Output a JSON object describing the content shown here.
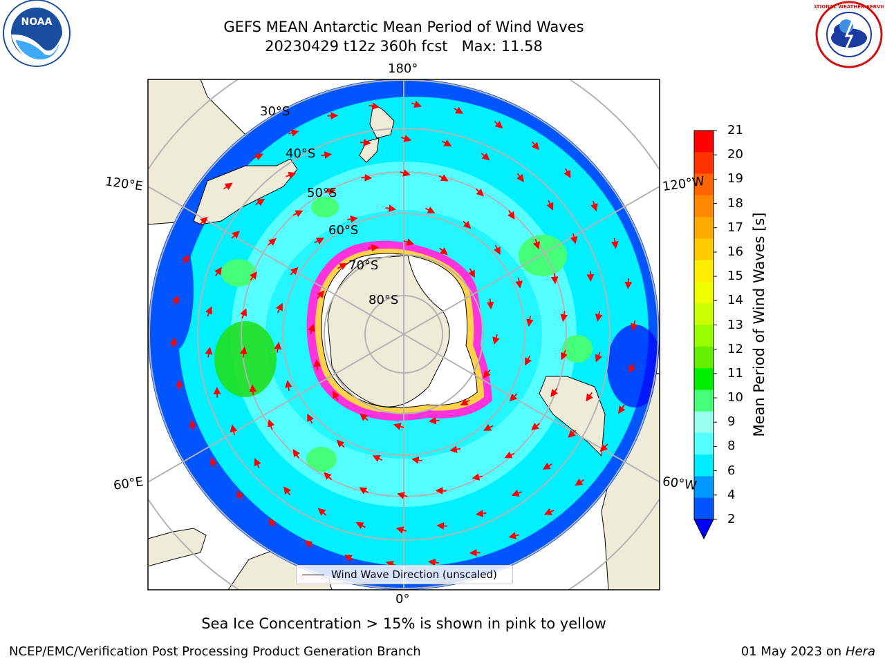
{
  "title": {
    "line1": "GEFS MEAN Antarctic Mean Period of Wind Waves",
    "line2": "20230429 t12z 360h fcst   Max: 11.58"
  },
  "map": {
    "projection": "south-polar-stereographic",
    "meridian_labels": {
      "top": "180°",
      "bottom": "0°",
      "upper_left": "120°E",
      "upper_right": "120°W",
      "lower_left": "60°E",
      "lower_right": "60°W"
    },
    "latitude_labels": [
      "30°S",
      "40°S",
      "50°S",
      "60°S",
      "70°S",
      "80°S"
    ],
    "colors": {
      "land": "#eeecd9",
      "ocean_deep_blue": "#0055ff",
      "ocean_cyan": "#00f0ff",
      "ocean_light": "#a8fcf6",
      "ocean_green": "#20e020",
      "sea_ice_pink": "#ff33dd",
      "sea_ice_yellow": "#ffd24a",
      "arrow": "#ff0000",
      "grid": "#b3b3b3"
    }
  },
  "legend": {
    "label": "Wind Wave Direction (unscaled)"
  },
  "colorbar": {
    "title": "Mean Period of Wind Waves [s]",
    "ticks": [
      "21",
      "20",
      "19",
      "18",
      "17",
      "16",
      "15",
      "14",
      "13",
      "12",
      "11",
      "10",
      "9",
      "8",
      "6",
      "4",
      "2"
    ],
    "colors_top_to_bottom": [
      "#ff0000",
      "#ff3300",
      "#ff6600",
      "#ff8800",
      "#ffaa00",
      "#ffcc00",
      "#ffee00",
      "#eeff00",
      "#ccff00",
      "#99ff00",
      "#66ee00",
      "#00ee00",
      "#44ff77",
      "#99ffee",
      "#55ffff",
      "#00eeff",
      "#0099ff",
      "#0055ff"
    ],
    "under_color": "#0000ff"
  },
  "caption": "Sea Ice Concentration > 15% is shown in pink to yellow",
  "footer": {
    "left": "NCEP/EMC/Verification Post Processing Product Generation Branch",
    "date": "01 May 2023 on",
    "machine": "Hera"
  },
  "logos": {
    "left": "NOAA",
    "right": "NATIONAL WEATHER SERVICE"
  }
}
